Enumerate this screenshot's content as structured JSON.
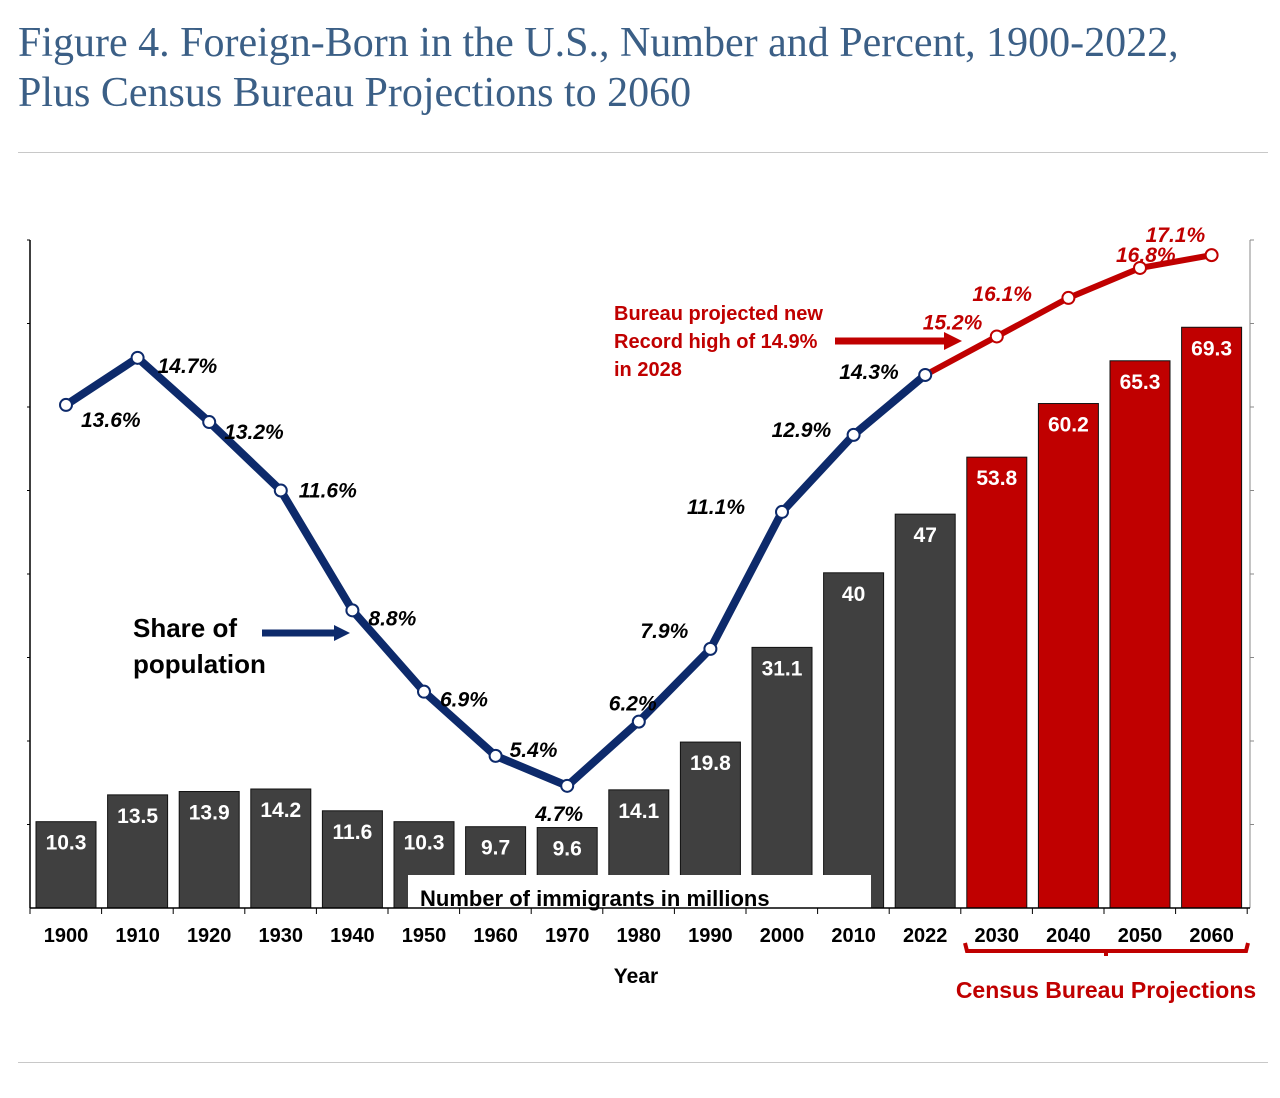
{
  "title_line1": "Figure 4. Foreign-Born in the U.S., Number and Percent, 1900-2022,",
  "title_line2": "Plus Census Bureau Projections to 2060",
  "chart_data": {
    "type": "bar+line",
    "categories": [
      "1900",
      "1910",
      "1920",
      "1930",
      "1940",
      "1950",
      "1960",
      "1970",
      "1980",
      "1990",
      "2000",
      "2010",
      "2022",
      "2030",
      "2040",
      "2050",
      "2060"
    ],
    "xlabel": "Year",
    "series": [
      {
        "name": "Number of immigrants in millions",
        "type": "bar",
        "values": [
          10.3,
          13.5,
          13.9,
          14.2,
          11.6,
          10.3,
          9.7,
          9.6,
          14.1,
          19.8,
          31.1,
          40,
          47,
          53.8,
          60.2,
          65.3,
          69.3
        ],
        "labels": [
          "10.3",
          "13.5",
          "13.9",
          "14.2",
          "11.6",
          "10.3",
          "9.7",
          "9.6",
          "14.1",
          "19.8",
          "31.1",
          "40",
          "47",
          "53.8",
          "60.2",
          "65.3",
          "69.3"
        ]
      },
      {
        "name": "Share of population",
        "type": "line",
        "values": [
          13.6,
          14.7,
          13.2,
          11.6,
          8.8,
          6.9,
          5.4,
          4.7,
          6.2,
          7.9,
          11.1,
          12.9,
          14.3,
          15.2,
          16.1,
          16.8,
          17.1
        ],
        "labels": [
          "13.6%",
          "14.7%",
          "13.2%",
          "11.6%",
          "8.8%",
          "6.9%",
          "5.4%",
          "4.7%",
          "6.2%",
          "7.9%",
          "11.1%",
          "12.9%",
          "14.3%",
          "15.2%",
          "16.1%",
          "16.8%",
          "17.1%"
        ]
      }
    ],
    "projection_start": "2030",
    "colors": {
      "historical_bar": "#404040",
      "projected_bar": "#c00000",
      "historical_line": "#0d2a6b",
      "projected_line": "#c00000"
    },
    "annotations": {
      "share_label": [
        "Share of",
        "population"
      ],
      "bars_label": "Number of immigrants in millions",
      "record_note": [
        "Bureau projected new",
        "Record high of 14.9%",
        "in 2028"
      ],
      "projections_label": "Census Bureau Projections"
    }
  }
}
